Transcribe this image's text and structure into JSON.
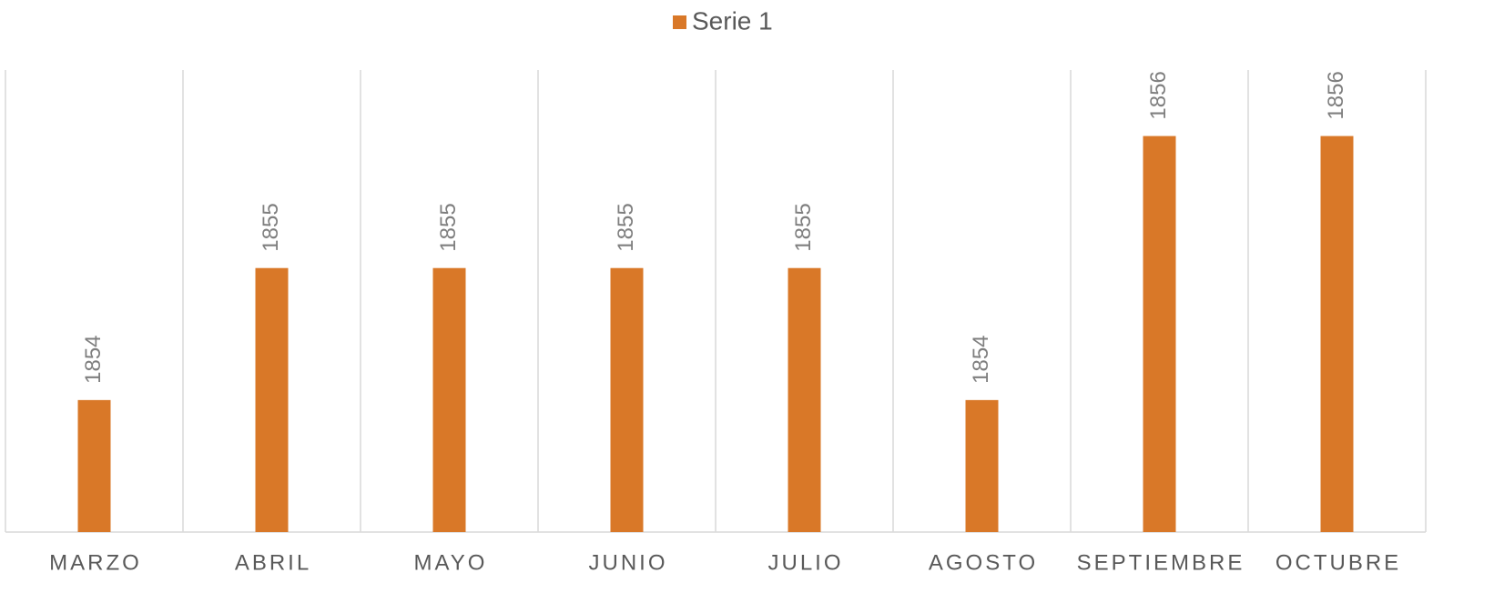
{
  "chart_data": {
    "type": "bar",
    "categories": [
      "MARZO",
      "ABRIL",
      "MAYO",
      "JUNIO",
      "JULIO",
      "AGOSTO",
      "SEPTIEMBRE",
      "OCTUBRE"
    ],
    "series": [
      {
        "name": "Serie 1",
        "color": "#d97828",
        "values": [
          1854,
          1855,
          1855,
          1855,
          1855,
          1854,
          1856,
          1856
        ]
      }
    ],
    "ylim": [
      1853,
      1856.5
    ],
    "data_labels": true,
    "legend": "top"
  }
}
